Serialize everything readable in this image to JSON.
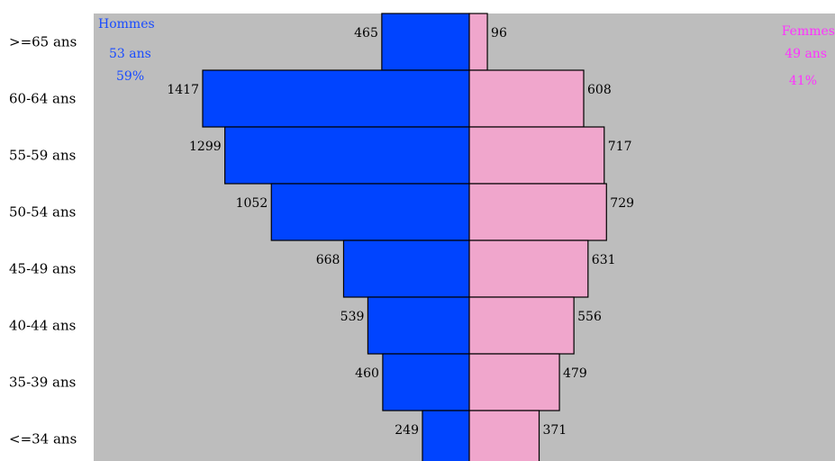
{
  "chart_data": {
    "type": "bar",
    "orientation": "horizontal-pyramid",
    "categories": [
      ">=65 ans",
      "60-64 ans",
      "55-59 ans",
      "50-54 ans",
      "45-49 ans",
      "40-44 ans",
      "35-39 ans",
      "<=34 ans"
    ],
    "series": [
      {
        "name": "Hommes",
        "side": "left",
        "color": "#0044ff",
        "values": [
          465,
          1417,
          1299,
          1052,
          668,
          539,
          460,
          249
        ]
      },
      {
        "name": "Femmes",
        "side": "right",
        "color": "#f0a6cc",
        "values": [
          96,
          608,
          717,
          729,
          631,
          556,
          479,
          371
        ]
      }
    ],
    "legend": {
      "hommes": {
        "lines": [
          "Hommes",
          "53 ans",
          "59%"
        ],
        "color": "#1a4cff",
        "placement": "top-left"
      },
      "femmes": {
        "lines": [
          "Femmes",
          "49 ans",
          "41%"
        ],
        "color": "#ff33ff",
        "placement": "top-right"
      }
    },
    "plot_background": "#bdbdbd",
    "grid": false,
    "xlim": [
      -2000,
      2000
    ]
  }
}
